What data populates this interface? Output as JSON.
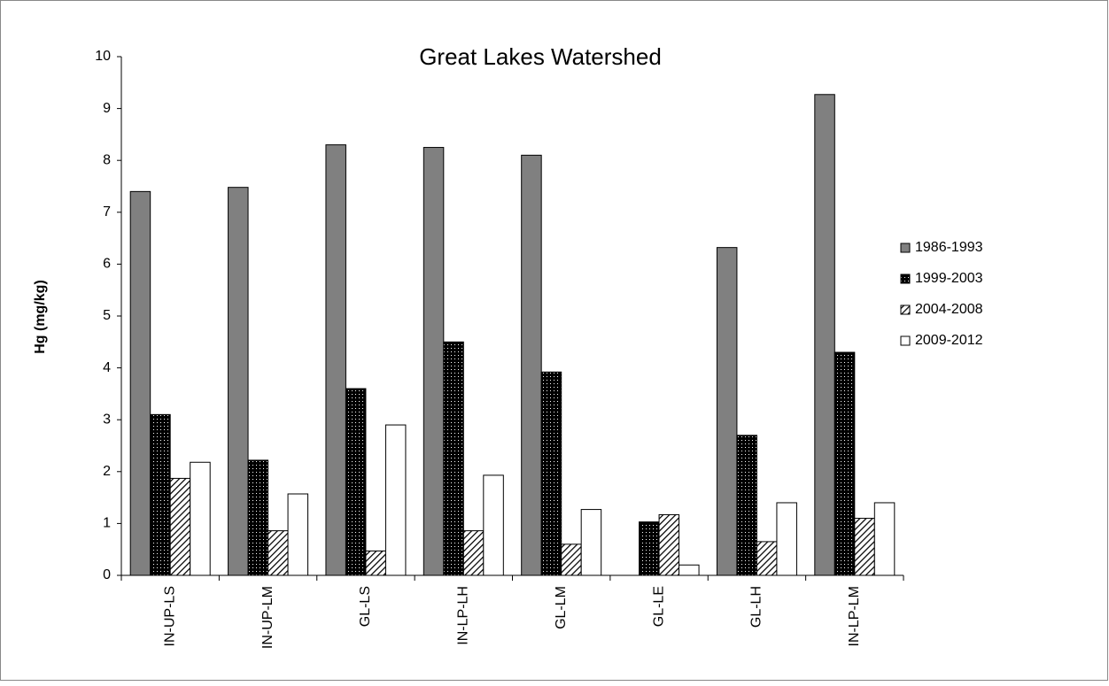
{
  "chart_data": {
    "type": "bar",
    "title": "Great Lakes Watershed",
    "y_label": "Hg (mg/kg)",
    "categories": [
      "IN-UP-LS",
      "IN-UP-LM",
      "GL-LS",
      "IN-LP-LH",
      "GL-LM",
      "GL-LE",
      "GL-LH",
      "IN-LP-LM"
    ],
    "series": [
      {
        "name": "1986-1993",
        "color": "#808080",
        "pattern": "solid",
        "values": [
          7.4,
          7.48,
          8.3,
          8.25,
          8.1,
          null,
          6.32,
          9.27
        ]
      },
      {
        "name": "1999-2003",
        "color": "#000000",
        "pattern": "dots",
        "values": [
          3.1,
          2.22,
          3.6,
          4.5,
          3.92,
          1.03,
          2.7,
          4.3
        ]
      },
      {
        "name": "2004-2008",
        "color": "#000000",
        "pattern": "hatch",
        "values": [
          1.87,
          0.86,
          0.47,
          0.86,
          0.6,
          1.17,
          0.65,
          1.1
        ]
      },
      {
        "name": "2009-2012",
        "color": "#ffffff",
        "pattern": "solid",
        "values": [
          2.18,
          1.57,
          2.9,
          1.93,
          1.27,
          0.2,
          1.4,
          1.4
        ]
      }
    ],
    "ylim": [
      0,
      10
    ],
    "yticks": [
      0,
      1,
      2,
      3,
      4,
      5,
      6,
      7,
      8,
      9,
      10
    ],
    "grid": false,
    "legend": "right"
  }
}
